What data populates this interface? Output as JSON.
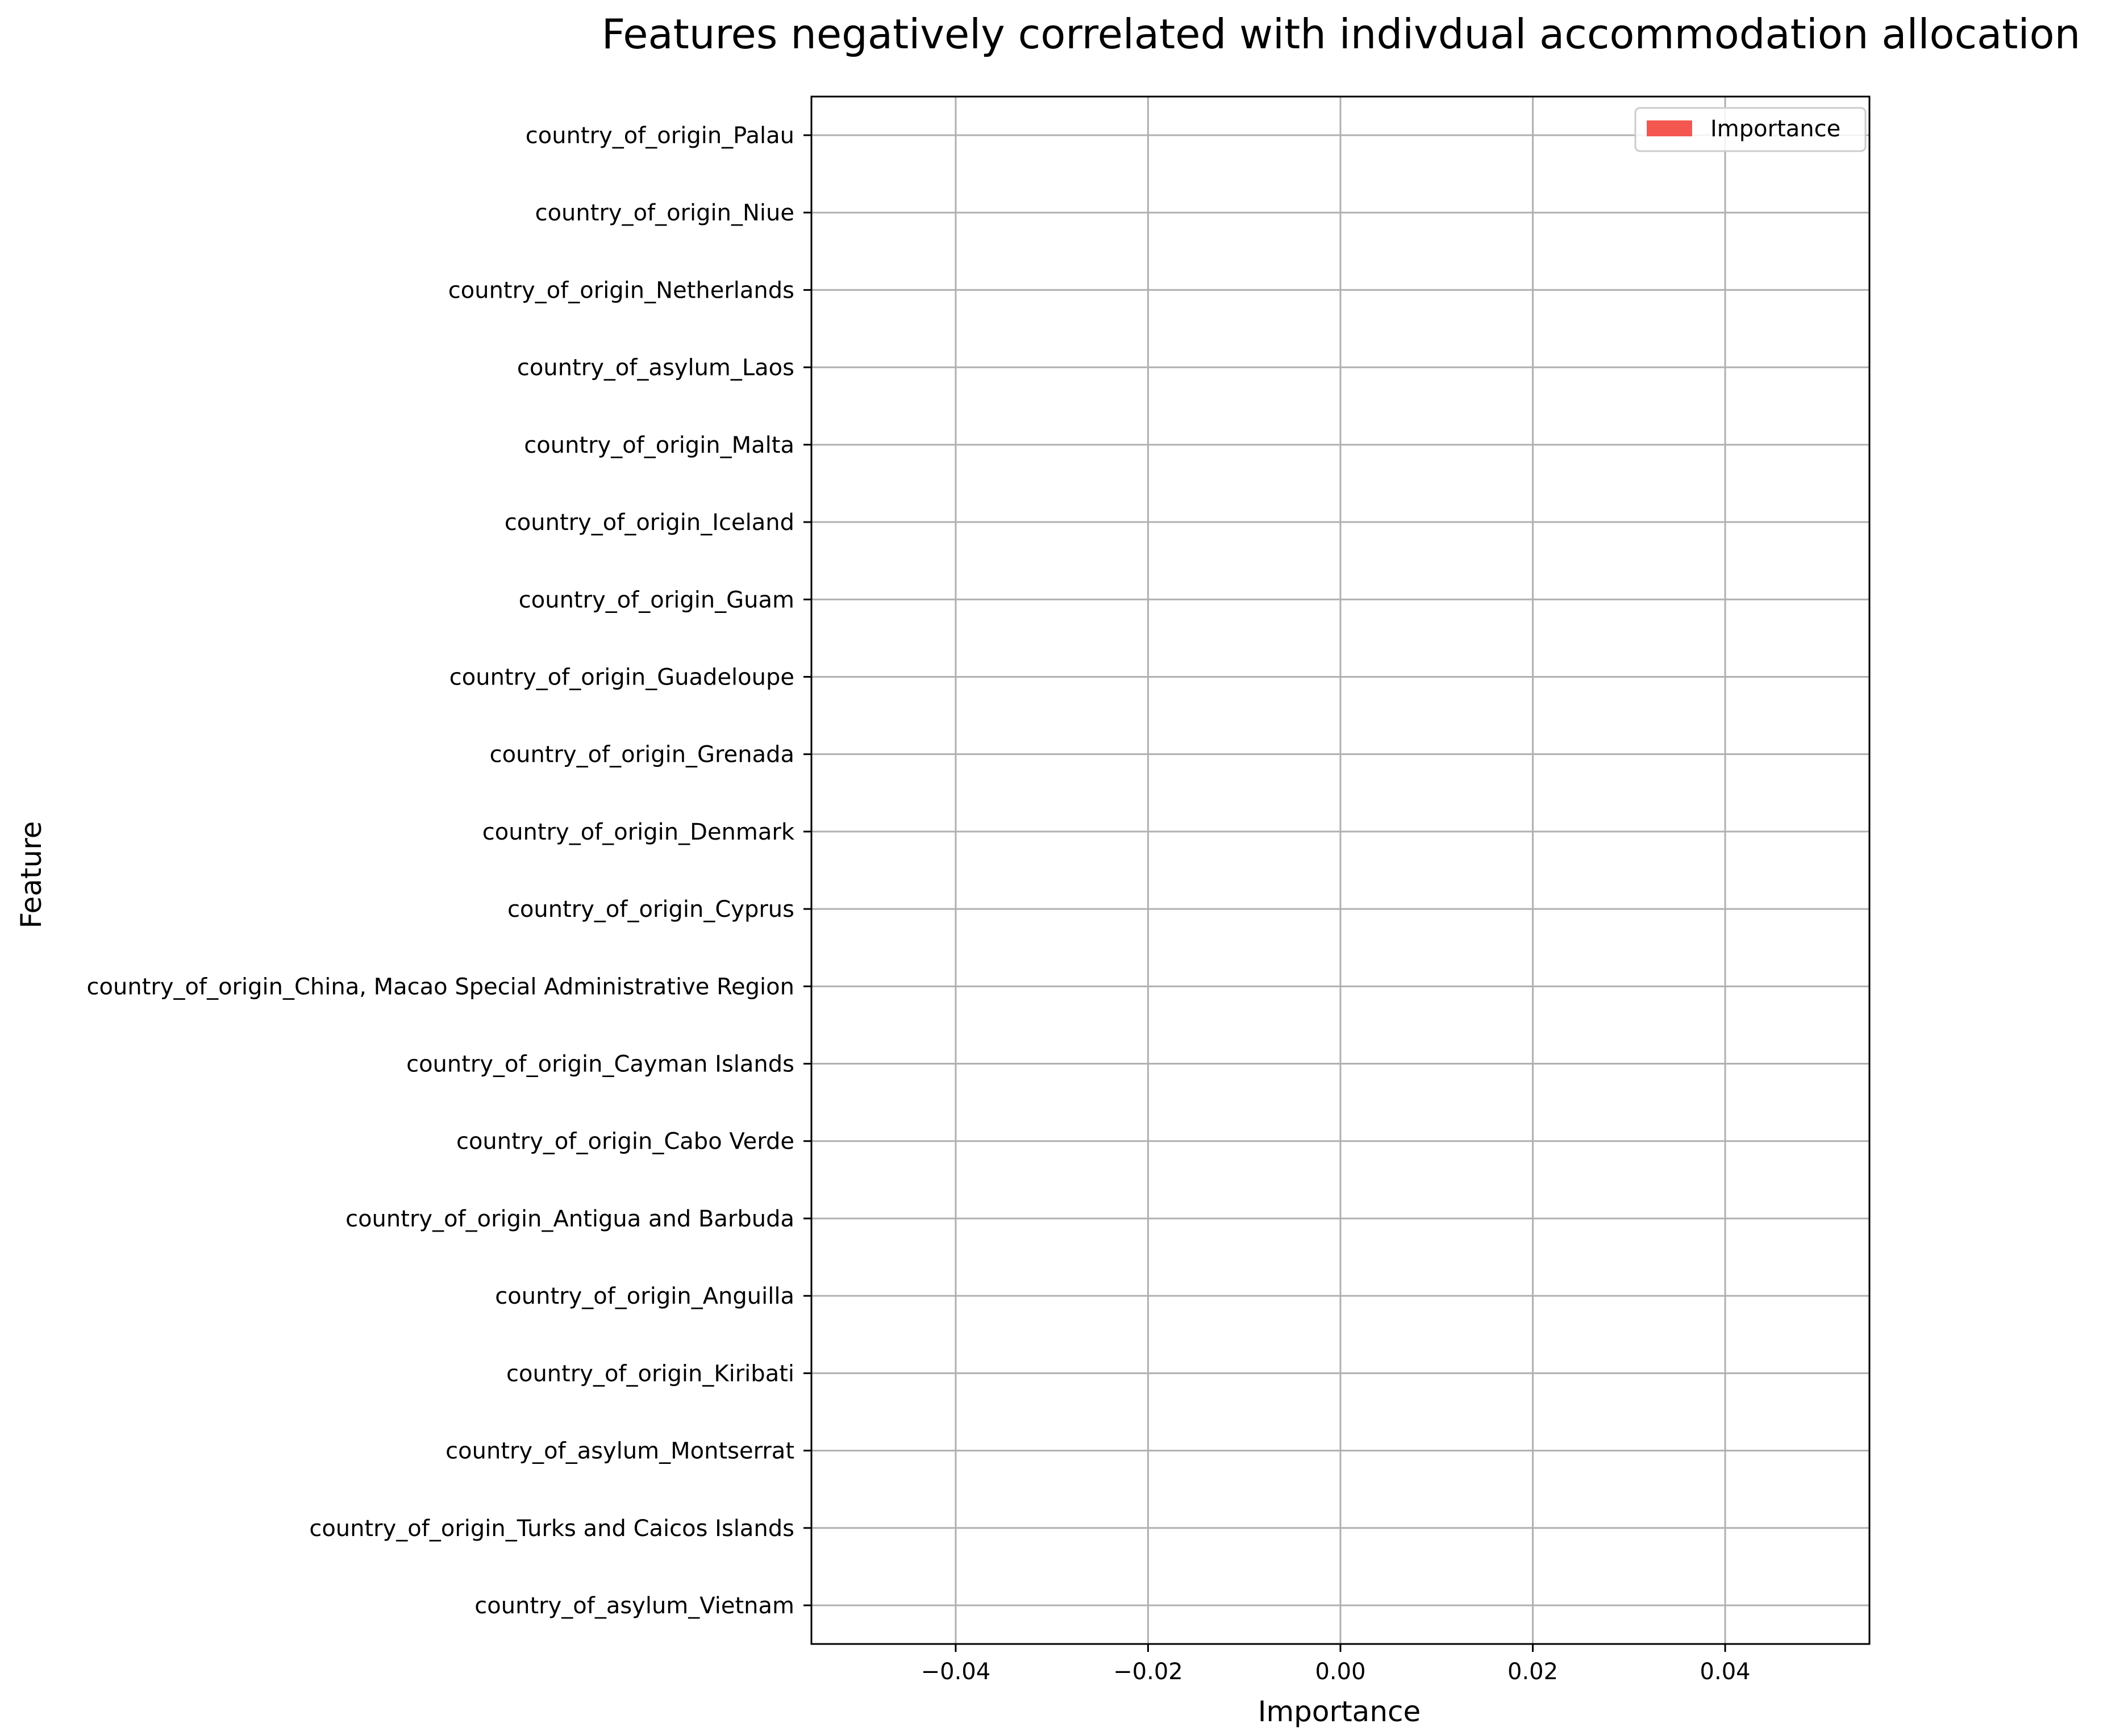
{
  "chart_data": {
    "type": "bar",
    "orientation": "horizontal",
    "title": "Features negatively correlated with indivdual accommodation allocation",
    "xlabel": "Importance",
    "ylabel": "Feature",
    "categories": [
      "country_of_origin_Palau",
      "country_of_origin_Niue",
      "country_of_origin_Netherlands",
      "country_of_asylum_Laos",
      "country_of_origin_Malta",
      "country_of_origin_Iceland",
      "country_of_origin_Guam",
      "country_of_origin_Guadeloupe",
      "country_of_origin_Grenada",
      "country_of_origin_Denmark",
      "country_of_origin_Cyprus",
      "country_of_origin_China, Macao Special Administrative Region",
      "country_of_origin_Cayman Islands",
      "country_of_origin_Cabo Verde",
      "country_of_origin_Antigua and Barbuda",
      "country_of_origin_Anguilla",
      "country_of_origin_Kiribati",
      "country_of_asylum_Montserrat",
      "country_of_origin_Turks and Caicos Islands",
      "country_of_asylum_Vietnam"
    ],
    "series": [
      {
        "name": "Importance",
        "color": "#f4574f",
        "values": [
          0,
          0,
          0,
          0,
          0,
          0,
          0,
          0,
          0,
          0,
          0,
          0,
          0,
          0,
          0,
          0,
          0,
          0,
          0,
          0
        ]
      }
    ],
    "xlim": [
      -0.055,
      0.055
    ],
    "xticks": [
      -0.04,
      -0.02,
      0.0,
      0.02,
      0.04
    ],
    "xtick_labels": [
      "−0.04",
      "−0.02",
      "0.00",
      "0.02",
      "0.04"
    ],
    "grid": true,
    "legend_position": "top-right"
  }
}
